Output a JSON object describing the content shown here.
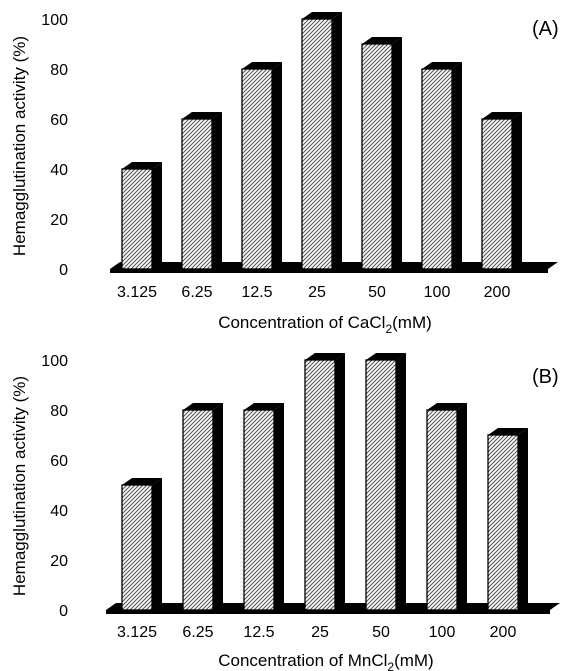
{
  "chart_data": [
    {
      "type": "bar",
      "panel_label": "(A)",
      "categories": [
        "3.125",
        "6.25",
        "12.5",
        "25",
        "50",
        "100",
        "200"
      ],
      "values": [
        40,
        60,
        80,
        100,
        90,
        80,
        60
      ],
      "xlabel_prefix": "Concentration of CaCl",
      "xlabel_subscript": "2",
      "xlabel_suffix": "(mM)",
      "ylabel": "Hemagglutination activity (%)",
      "ylim": [
        0,
        100
      ],
      "yticks": [
        "0",
        "20",
        "40",
        "60",
        "80",
        "100"
      ],
      "grid": false,
      "style": "3d-hatched",
      "colors": {
        "bar_fill": "#ffffff",
        "hatch": "#555555",
        "bar_shade": "#000000",
        "floor": "#000000"
      }
    },
    {
      "type": "bar",
      "panel_label": "(B)",
      "categories": [
        "3.125",
        "6.25",
        "12.5",
        "25",
        "50",
        "100",
        "200"
      ],
      "values": [
        50,
        80,
        80,
        100,
        100,
        80,
        70
      ],
      "xlabel_prefix": "Concentration of MnCl",
      "xlabel_subscript": "2",
      "xlabel_suffix": "(mM)",
      "ylabel": "Hemagglutination activity (%)",
      "ylim": [
        0,
        100
      ],
      "yticks": [
        "0",
        "20",
        "40",
        "60",
        "80",
        "100"
      ],
      "grid": false,
      "style": "3d-hatched",
      "colors": {
        "bar_fill": "#ffffff",
        "hatch": "#555555",
        "bar_shade": "#000000",
        "floor": "#000000"
      }
    }
  ]
}
